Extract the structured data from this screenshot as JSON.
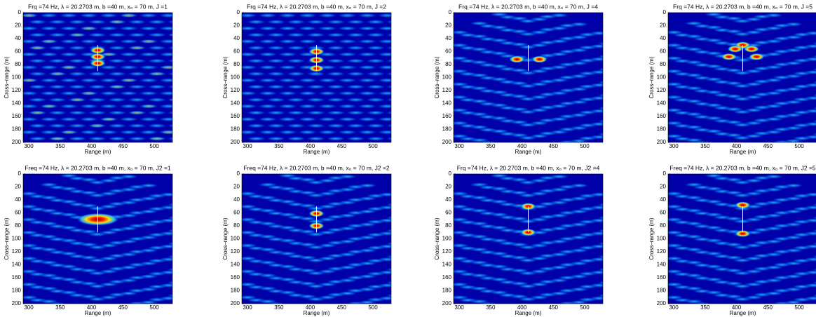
{
  "chart_data": [
    {
      "type": "heatmap",
      "title": "Frq =74 Hz, λ = 20.2703 m, b =40 m, x₀ = 70 m, J =1",
      "xlabel": "Range (m)",
      "ylabel": "Cross–range (m)",
      "xlim": [
        291,
        529
      ],
      "ylim": [
        0,
        200
      ],
      "y_reversed": true,
      "xticks": [
        300,
        350,
        400,
        450,
        500
      ],
      "yticks": [
        0,
        20,
        40,
        60,
        80,
        100,
        120,
        140,
        160,
        180,
        200
      ],
      "marker": {
        "x": [
          410,
          410
        ],
        "y": [
          50,
          90
        ]
      },
      "peaks": {
        "x": [
          410,
          410,
          410
        ],
        "y": [
          58,
          68,
          78
        ]
      }
    },
    {
      "type": "heatmap",
      "title": "Frq =74 Hz, λ = 20.2703 m, b =40 m, x₀ = 70 m, J =2",
      "xlabel": "Range (m)",
      "ylabel": "Cross–range (m)",
      "xlim": [
        291,
        529
      ],
      "ylim": [
        0,
        200
      ],
      "y_reversed": true,
      "xticks": [
        300,
        350,
        400,
        450,
        500
      ],
      "yticks": [
        0,
        20,
        40,
        60,
        80,
        100,
        120,
        140,
        160,
        180,
        200
      ],
      "marker": {
        "x": [
          410,
          410
        ],
        "y": [
          50,
          90
        ]
      },
      "peaks": {
        "x": [
          410,
          410,
          410
        ],
        "y": [
          60,
          73,
          86
        ]
      }
    },
    {
      "type": "heatmap",
      "title": "Frq =74 Hz, λ = 20.2703 m, b =40 m, x₀ = 70 m, J =4",
      "xlabel": "Range (m)",
      "ylabel": "Cross–range (m)",
      "xlim": [
        291,
        529
      ],
      "ylim": [
        0,
        200
      ],
      "y_reversed": true,
      "xticks": [
        300,
        350,
        400,
        450,
        500
      ],
      "yticks": [
        0,
        20,
        40,
        60,
        80,
        100,
        120,
        140,
        160,
        180,
        200
      ],
      "marker": {
        "x": [
          410,
          410
        ],
        "y": [
          50,
          90
        ]
      },
      "peaks": {
        "x": [
          392,
          428
        ],
        "y": [
          72,
          72
        ]
      }
    },
    {
      "type": "heatmap",
      "title": "Frq =74 Hz, λ = 20.2703 m, b =40 m, x₀ = 70 m, J =5",
      "xlabel": "Range (m)",
      "ylabel": "Cross–range (m)",
      "xlim": [
        291,
        529
      ],
      "ylim": [
        0,
        200
      ],
      "y_reversed": true,
      "xticks": [
        300,
        350,
        400,
        450,
        500
      ],
      "yticks": [
        0,
        20,
        40,
        60,
        80,
        100,
        120,
        140,
        160,
        180,
        200
      ],
      "marker": {
        "x": [
          410,
          410
        ],
        "y": [
          50,
          90
        ]
      },
      "peaks": {
        "x": [
          410,
          398,
          424,
          388,
          432
        ],
        "y": [
          50,
          56,
          56,
          68,
          68
        ]
      }
    },
    {
      "type": "heatmap",
      "title": "Freq =74 Hz, λ = 20.2703 m, b =40 m, x₀ = 70 m, J2 =1",
      "xlabel": "Range (m)",
      "ylabel": "Cross–range (m)",
      "xlim": [
        291,
        529
      ],
      "ylim": [
        0,
        200
      ],
      "y_reversed": true,
      "xticks": [
        300,
        350,
        400,
        450,
        500
      ],
      "yticks": [
        0,
        20,
        40,
        60,
        80,
        100,
        120,
        140,
        160,
        180,
        200
      ],
      "marker": {
        "x": [
          410,
          410
        ],
        "y": [
          50,
          90
        ]
      },
      "peaks": {
        "x": [
          410
        ],
        "y": [
          70
        ]
      }
    },
    {
      "type": "heatmap",
      "title": "Freq =74 Hz, λ = 20.2703 m, b =40 m, x₀ = 70 m, J2 =2",
      "xlabel": "Range (m)",
      "ylabel": "Cross–range (m)",
      "xlim": [
        291,
        529
      ],
      "ylim": [
        0,
        200
      ],
      "y_reversed": true,
      "xticks": [
        300,
        350,
        400,
        450,
        500
      ],
      "yticks": [
        0,
        20,
        40,
        60,
        80,
        100,
        120,
        140,
        160,
        180,
        200
      ],
      "marker": {
        "x": [
          410,
          410
        ],
        "y": [
          50,
          90
        ]
      },
      "peaks": {
        "x": [
          410,
          410
        ],
        "y": [
          61,
          80
        ]
      }
    },
    {
      "type": "heatmap",
      "title": "Frq =74 Hz, λ = 20.2703 m, b =40 m, x₀ = 70 m, J2 =4",
      "xlabel": "Range (m)",
      "ylabel": "Cross–range (m)",
      "xlim": [
        291,
        529
      ],
      "ylim": [
        0,
        200
      ],
      "y_reversed": true,
      "xticks": [
        300,
        350,
        400,
        450,
        500
      ],
      "yticks": [
        0,
        20,
        40,
        60,
        80,
        100,
        120,
        140,
        160,
        180,
        200
      ],
      "marker": {
        "x": [
          410,
          410
        ],
        "y": [
          50,
          90
        ]
      },
      "peaks": {
        "x": [
          410,
          410
        ],
        "y": [
          50,
          90
        ]
      }
    },
    {
      "type": "heatmap",
      "title": "Freq =74 Hz, λ = 20.2703 m, b =40 m, x₀ = 70 m, J2 =5",
      "xlabel": "Range (m)",
      "ylabel": "Cross–range (m)",
      "xlim": [
        291,
        529
      ],
      "ylim": [
        0,
        200
      ],
      "y_reversed": true,
      "xticks": [
        300,
        350,
        400,
        450,
        500
      ],
      "yticks": [
        0,
        20,
        40,
        60,
        80,
        100,
        120,
        140,
        160,
        180,
        200
      ],
      "marker": {
        "x": [
          410,
          410
        ],
        "y": [
          50,
          90
        ]
      },
      "peaks": {
        "x": [
          410,
          410
        ],
        "y": [
          48,
          92
        ]
      }
    }
  ]
}
